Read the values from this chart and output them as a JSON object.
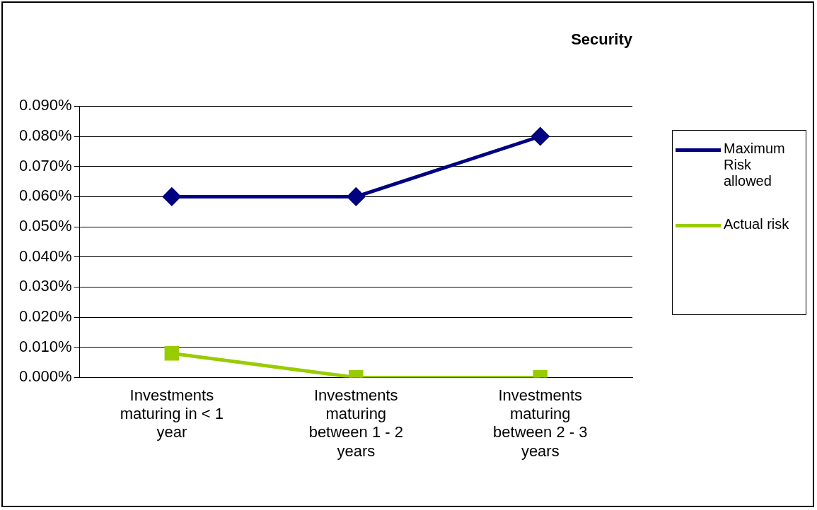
{
  "chart_data": {
    "type": "line",
    "title": "Security",
    "categories": [
      "Investments maturing in < 1 year",
      "Investments maturing between 1 - 2 years",
      "Investments maturing between 2 - 3 years"
    ],
    "series": [
      {
        "name": "Maximum Risk allowed",
        "color": "#000080",
        "marker": "diamond",
        "values": [
          0.06,
          0.06,
          0.08
        ]
      },
      {
        "name": "Actual risk",
        "color": "#99cc00",
        "marker": "square",
        "values": [
          0.008,
          0,
          0
        ]
      }
    ],
    "ylim": [
      0,
      0.09
    ],
    "yticks": [
      {
        "value": 0,
        "label": "0.000%"
      },
      {
        "value": 0.01,
        "label": "0.010%"
      },
      {
        "value": 0.02,
        "label": "0.020%"
      },
      {
        "value": 0.03,
        "label": "0.030%"
      },
      {
        "value": 0.04,
        "label": "0.040%"
      },
      {
        "value": 0.05,
        "label": "0.050%"
      },
      {
        "value": 0.06,
        "label": "0.060%"
      },
      {
        "value": 0.07,
        "label": "0.070%"
      },
      {
        "value": 0.08,
        "label": "0.080%"
      },
      {
        "value": 0.09,
        "label": "0.090%"
      }
    ],
    "grid": "y",
    "legend": "right",
    "line_style": "solid"
  }
}
